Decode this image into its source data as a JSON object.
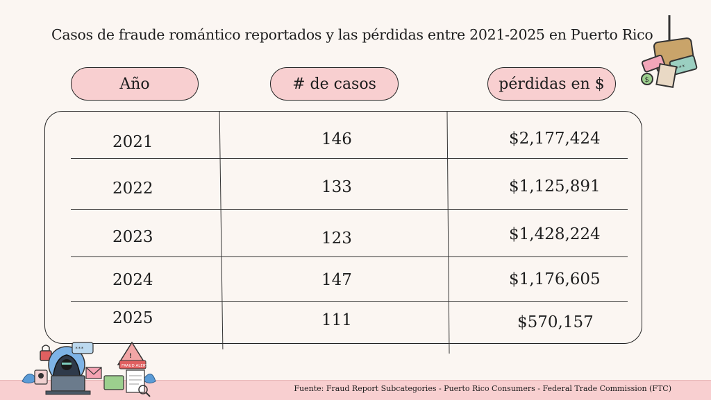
{
  "title": "Casos de fraude romántico reportados y las pérdidas entre 2021-2025 en Puerto Rico",
  "table": {
    "headers": [
      "Año",
      "# de casos",
      "pérdidas en $"
    ],
    "rows": [
      {
        "year": "2021",
        "cases": "146",
        "losses": "$2,177,424"
      },
      {
        "year": "2022",
        "cases": "133",
        "losses": "$1,125,891"
      },
      {
        "year": "2023",
        "cases": "123",
        "losses": "$1,428,224"
      },
      {
        "year": "2024",
        "cases": "147",
        "losses": "$1,176,605"
      },
      {
        "year": "2025",
        "cases": "111",
        "losses": "$570,157"
      }
    ]
  },
  "footer": {
    "source": "Fuente: Fraud Report Subcategories - Puerto Rico Consumers - Federal Trade Commission (FTC)"
  },
  "illustrations": {
    "top_right": "fishing-hook-wallet-icon",
    "bottom_left": "hacker-laptop-icon",
    "fraud_alert_text": "FRAUD ALERT"
  },
  "colors": {
    "background": "#fbf6f2",
    "accent_pink": "#f8cfd0",
    "border": "#222222"
  }
}
